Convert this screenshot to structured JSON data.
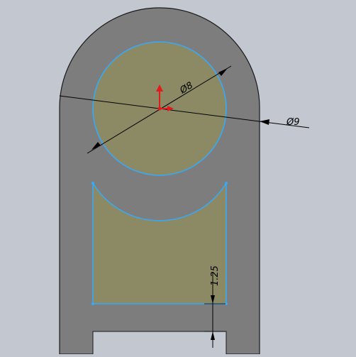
{
  "viewport": {
    "background": "#c3c7cf",
    "part_fill": "#7d7d7d",
    "sketch_fill": "#8c8a64",
    "sketch_edge": "#39a9f4",
    "origin_color": "#e11b1b",
    "dimension_color": "#000000"
  },
  "dimensions": {
    "inner_diameter": "Ø8",
    "outer_diameter": "Ø9",
    "slot_offset": "1.25"
  },
  "icons": {
    "origin": "origin-triad-icon"
  }
}
